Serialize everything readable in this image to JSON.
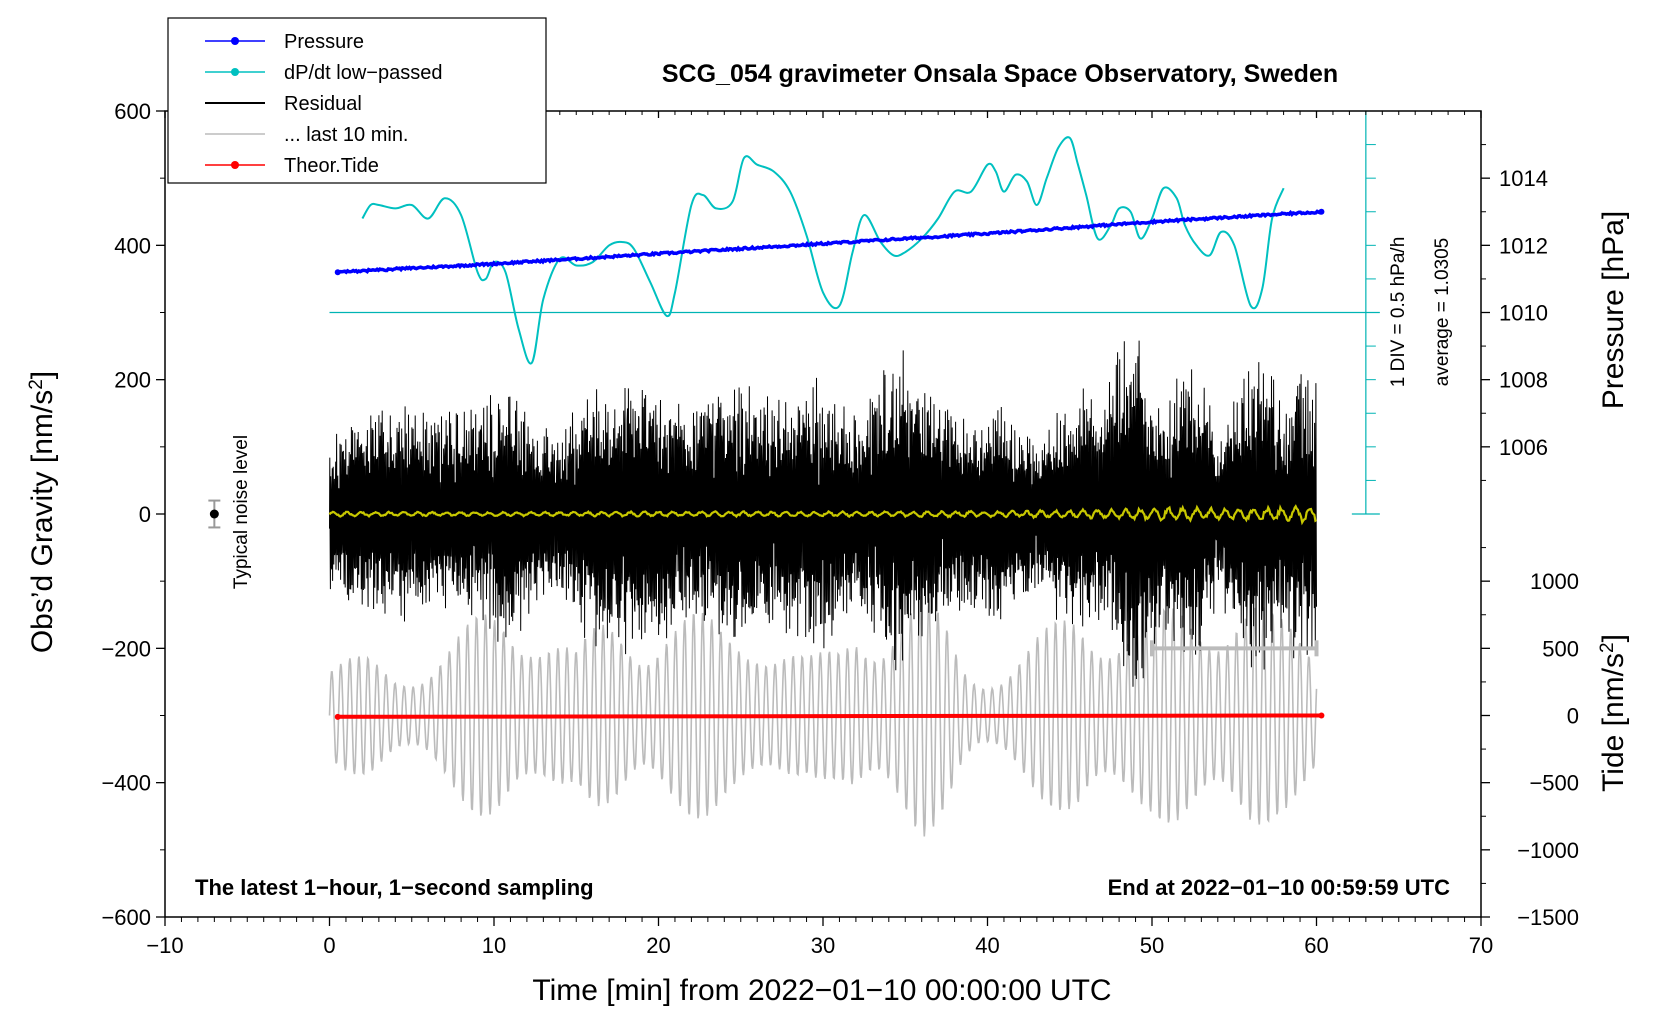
{
  "chart_data": {
    "type": "line",
    "title": "SCG_054 gravimeter Onsala Space Observatory, Sweden",
    "xlabel": "Time [min] from 2022−01−10 00:00:00 UTC",
    "ylabel": "Obs’d Gravity [nm/s",
    "ylabel_sup": "2",
    "ylabel_close": "]",
    "ylabel_right_top": "Pressure [hPa]",
    "ylabel_right_bottom": "Tide [nm/s",
    "ylabel_right_bottom_sup": "2",
    "ylabel_right_bottom_close": "]",
    "xlim": [
      -10,
      70
    ],
    "ylim": [
      -600,
      600
    ],
    "xticks": [
      -10,
      0,
      10,
      20,
      30,
      40,
      50,
      60,
      70
    ],
    "xtick_labels": [
      "−10",
      "0",
      "10",
      "20",
      "30",
      "40",
      "50",
      "60",
      "70"
    ],
    "yticks": [
      600,
      400,
      200,
      0,
      -200,
      -400,
      -600
    ],
    "ytick_labels": [
      "600",
      "400",
      "200",
      "0",
      "−200",
      "−400",
      "−600"
    ],
    "pressure_axis": {
      "ticks": [
        1014,
        1012,
        1010,
        1008,
        1006
      ],
      "labels": [
        "1014",
        "1012",
        "1010",
        "1008",
        "1006"
      ],
      "gravity_at_1010": 300,
      "gravity_per_hpa": 50
    },
    "tide_axis": {
      "ticks": [
        1000,
        500,
        0,
        -500,
        -1000,
        -1500
      ],
      "labels": [
        "1000",
        "500",
        "0",
        "−500",
        "−1000",
        "−1500"
      ],
      "gravity_at_0": -300,
      "gravity_per_unit": 0.2
    },
    "dpdt_axis": {
      "label": "1 DIV = 0.5 hPa/h",
      "average": "average = 1.0305",
      "x": 63,
      "ymin": 0,
      "ymax": 600,
      "reference_y": 300
    },
    "legend": [
      {
        "label": "Pressure",
        "color": "#0000ff",
        "marker": "dot"
      },
      {
        "label": "dP/dt low−passed",
        "color": "#00c0c0",
        "marker": "dot"
      },
      {
        "label": "Residual",
        "color": "#000000",
        "marker": "none"
      },
      {
        "label": "... last 10 min.",
        "color": "#bbbbbb",
        "marker": "none"
      },
      {
        "label": "Theor.Tide",
        "color": "#ff0000",
        "marker": "dot"
      }
    ],
    "annotations": {
      "left_note": "The latest 1−hour, 1−second sampling",
      "right_note": "End at 2022−01−10 00:59:59 UTC",
      "noise_label": "Typical noise level",
      "noise_x": -7,
      "noise_y": 0,
      "noise_err": 20,
      "last10_range": [
        50,
        60
      ],
      "last10_y": -200,
      "last10_halfheight": 8
    },
    "series": [
      {
        "name": "Pressure",
        "color": "#0000ff",
        "axis": "pressure",
        "x": [
          0.5,
          10,
          20,
          30,
          40,
          50,
          60.3
        ],
        "values": [
          1011.2,
          1011.45,
          1011.75,
          1012.05,
          1012.35,
          1012.7,
          1013.0
        ]
      },
      {
        "name": "dP/dt low-passed",
        "color": "#00c0c0",
        "axis": "gravity",
        "x": [
          2,
          2.5,
          3,
          4,
          5,
          6,
          7,
          8,
          9,
          9.5,
          10,
          10.7,
          11.5,
          12.3,
          13,
          14,
          15,
          16,
          17,
          17.8,
          18.5,
          19.5,
          20.5,
          21,
          22,
          22.7,
          23.5,
          24.5,
          25.2,
          26,
          27,
          28,
          29,
          30,
          31,
          31.8,
          32.5,
          33.5,
          34.3,
          35,
          36,
          37,
          38,
          39,
          40,
          40.5,
          41,
          41.7,
          42.4,
          43,
          43.6,
          44.3,
          45,
          45.5,
          46,
          46.7,
          47.5,
          48,
          48.7,
          49.3,
          50,
          50.7,
          51.5,
          52,
          52.7,
          53.5,
          54.2,
          55,
          56,
          56.7,
          57.3,
          58
        ],
        "values": [
          440,
          460,
          460,
          455,
          460,
          440,
          470,
          445,
          360,
          350,
          375,
          360,
          275,
          225,
          320,
          380,
          370,
          375,
          400,
          405,
          395,
          345,
          295,
          330,
          460,
          475,
          455,
          465,
          530,
          520,
          510,
          480,
          415,
          330,
          310,
          390,
          445,
          405,
          385,
          390,
          410,
          440,
          480,
          480,
          520,
          510,
          480,
          505,
          495,
          460,
          500,
          545,
          560,
          520,
          475,
          410,
          430,
          455,
          450,
          410,
          440,
          485,
          470,
          430,
          400,
          385,
          420,
          400,
          310,
          335,
          440,
          485
        ]
      },
      {
        "name": "Residual",
        "color": "#000000",
        "axis": "gravity",
        "x_range": [
          0,
          60
        ],
        "envelope_x": [
          0,
          2.5,
          4,
          5,
          6.5,
          9,
          11,
          12,
          14,
          15,
          16,
          17,
          18,
          19,
          20,
          22,
          24,
          25,
          27,
          28.5,
          30,
          31,
          32,
          33,
          34,
          35,
          36,
          37,
          38,
          39,
          40,
          41,
          42,
          43,
          44,
          45,
          46,
          47,
          48,
          49,
          50,
          51,
          52,
          53,
          54,
          55,
          56,
          57,
          58,
          59,
          60
        ],
        "envelope_amp": [
          115,
          145,
          160,
          155,
          140,
          160,
          200,
          150,
          110,
          160,
          195,
          185,
          200,
          205,
          190,
          150,
          185,
          200,
          170,
          185,
          200,
          165,
          140,
          185,
          225,
          245,
          195,
          180,
          150,
          130,
          155,
          160,
          130,
          110,
          150,
          170,
          195,
          160,
          245,
          280,
          190,
          175,
          220,
          210,
          130,
          170,
          230,
          240,
          165,
          235,
          200
        ]
      },
      {
        "name": "Residual low-passed",
        "color": "#c8c800",
        "axis": "gravity",
        "x_range": [
          0,
          60
        ],
        "envelope_x": [
          0,
          10,
          20,
          30,
          40,
          44,
          48,
          50,
          52,
          54,
          56,
          58,
          60
        ],
        "envelope_amp": [
          4,
          3,
          4,
          4,
          5,
          6,
          8,
          10,
          11,
          9,
          10,
          12,
          14
        ]
      },
      {
        "name": "last 10 min. overlay",
        "color": "#bbbbbb",
        "axis": "gravity",
        "x_range": [
          0,
          60
        ],
        "envelope_x": [
          0,
          2.5,
          4,
          6,
          8,
          9.5,
          10.5,
          11.5,
          12.3,
          13.5,
          15,
          16.5,
          17.5,
          19,
          20.5,
          22,
          24,
          26,
          28,
          29,
          30,
          31,
          32,
          33.5,
          35,
          36,
          37.5,
          38.5,
          39.5,
          41,
          42.5,
          44,
          45.5,
          47,
          48.5,
          50,
          51.5,
          53,
          54,
          55,
          56,
          57.5,
          60
        ],
        "envelope_amp": [
          85,
          90,
          75,
          95,
          130,
          160,
          175,
          170,
          175,
          150,
          100,
          145,
          160,
          145,
          165,
          160,
          140,
          155,
          115,
          90,
          95,
          110,
          165,
          160,
          180,
          190,
          140,
          90,
          75,
          85,
          110,
          140,
          180,
          170,
          160,
          150,
          170,
          180,
          190,
          210,
          200,
          150,
          120
        ],
        "period_min": 0.55,
        "offset": -300
      },
      {
        "name": "Theor.Tide",
        "color": "#ff0000",
        "axis": "tide",
        "x": [
          0.5,
          20,
          40,
          60.3
        ],
        "values": [
          -10,
          -7,
          -3,
          0
        ]
      }
    ]
  }
}
